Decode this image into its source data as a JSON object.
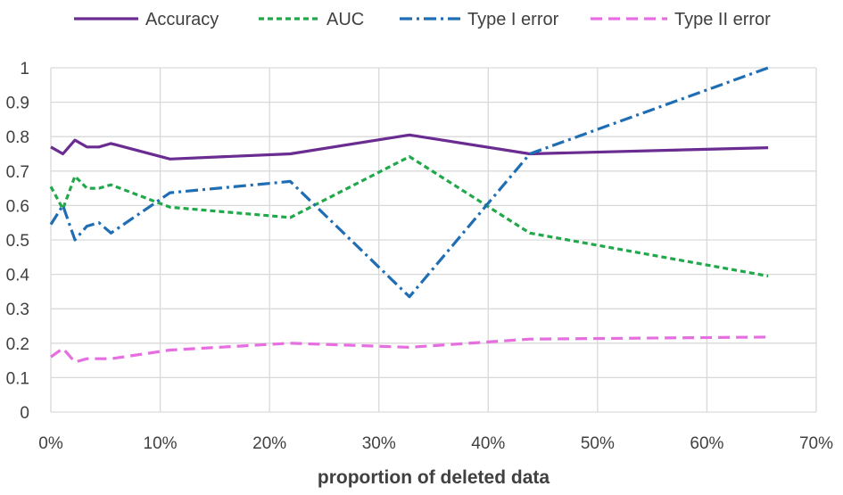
{
  "chart_data": {
    "type": "line",
    "title": "",
    "xlabel": "proportion  of deleted data",
    "ylabel": "",
    "xlim": [
      0,
      0.7
    ],
    "ylim": [
      0,
      1
    ],
    "x_ticks": [
      0,
      0.1,
      0.2,
      0.3,
      0.4,
      0.5,
      0.6,
      0.7
    ],
    "x_tick_labels": [
      "0%",
      "10%",
      "20%",
      "30%",
      "40%",
      "50%",
      "60%",
      "70%"
    ],
    "y_ticks": [
      0,
      0.1,
      0.2,
      0.3,
      0.4,
      0.5,
      0.6,
      0.7,
      0.8,
      0.9,
      1
    ],
    "y_tick_labels": [
      "0",
      "0.1",
      "0.2",
      "0.3",
      "0.4",
      "0.5",
      "0.6",
      "0.7",
      "0.8",
      "0.9",
      "1"
    ],
    "grid": true,
    "legend_position": "top",
    "series": [
      {
        "name": "Accuracy",
        "color": "#6A2C91",
        "dash": "solid",
        "x": [
          0.0,
          0.011,
          0.022,
          0.033,
          0.044,
          0.055,
          0.109,
          0.219,
          0.328,
          0.438,
          0.656
        ],
        "y": [
          0.77,
          0.75,
          0.79,
          0.77,
          0.77,
          0.78,
          0.735,
          0.75,
          0.805,
          0.75,
          0.768
        ]
      },
      {
        "name": "AUC",
        "color": "#21A84A",
        "dash": "dashed",
        "x": [
          0.0,
          0.011,
          0.022,
          0.033,
          0.044,
          0.055,
          0.109,
          0.219,
          0.328,
          0.438,
          0.656
        ],
        "y": [
          0.655,
          0.59,
          0.685,
          0.65,
          0.65,
          0.66,
          0.595,
          0.565,
          0.742,
          0.52,
          0.395
        ]
      },
      {
        "name": "Type I error",
        "color": "#1F6EB4",
        "dash": "dashdot",
        "x": [
          0.0,
          0.011,
          0.022,
          0.033,
          0.044,
          0.055,
          0.109,
          0.219,
          0.328,
          0.438,
          0.656
        ],
        "y": [
          0.545,
          0.6,
          0.5,
          0.54,
          0.55,
          0.52,
          0.637,
          0.67,
          0.335,
          0.75,
          1.0
        ]
      },
      {
        "name": "Type II error",
        "color": "#E66EE0",
        "dash": "longdash",
        "x": [
          0.0,
          0.011,
          0.022,
          0.033,
          0.044,
          0.055,
          0.109,
          0.219,
          0.328,
          0.438,
          0.656
        ],
        "y": [
          0.16,
          0.185,
          0.145,
          0.155,
          0.155,
          0.155,
          0.18,
          0.2,
          0.188,
          0.212,
          0.218
        ]
      }
    ]
  }
}
